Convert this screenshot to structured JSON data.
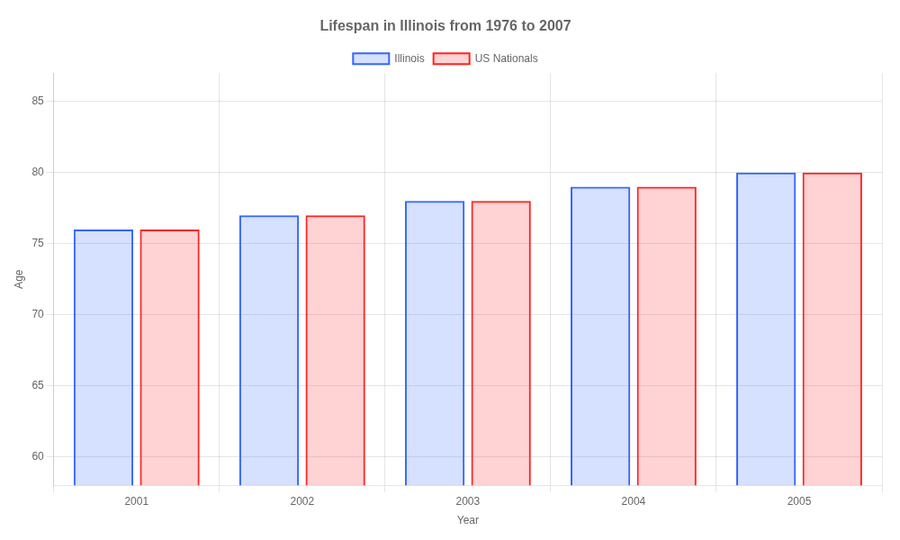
{
  "chart_data": {
    "type": "bar",
    "title": "Lifespan in Illinois from 1976 to 2007",
    "x_label": "Year",
    "y_label": "Age",
    "categories": [
      "2001",
      "2002",
      "2003",
      "2004",
      "2005"
    ],
    "series": [
      {
        "name": "Illinois",
        "color": "#3366ff",
        "values": [
          76,
          77,
          78,
          79,
          80
        ]
      },
      {
        "name": "US Nationals",
        "color": "#ff2222",
        "values": [
          76,
          77,
          78,
          79,
          80
        ]
      }
    ],
    "ylim": [
      58,
      87
    ],
    "yticks": [
      60,
      65,
      70,
      75,
      80,
      85
    ],
    "grid": true,
    "legend": "top"
  }
}
